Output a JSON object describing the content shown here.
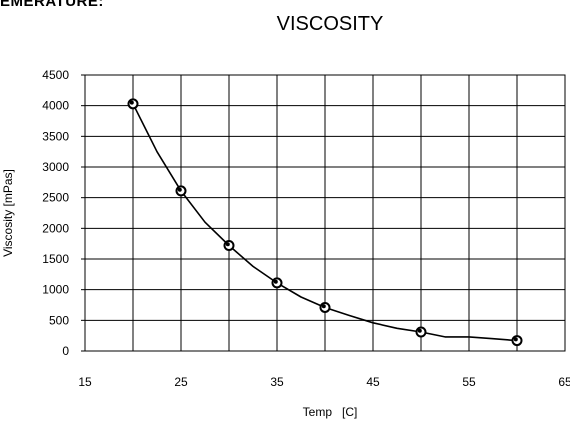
{
  "page": {
    "cut_header": "EMERATURE:"
  },
  "chart_data": {
    "type": "line",
    "title": "VISCOSITY",
    "xlabel": "Temp   [C]",
    "ylabel": "Viscosity [mPas]",
    "xlim": [
      15,
      65
    ],
    "ylim": [
      0,
      4500
    ],
    "x_ticks": [
      15,
      25,
      35,
      45,
      55,
      65
    ],
    "x_tick_labels": [
      "15",
      "25",
      "35",
      "45",
      "55",
      "65"
    ],
    "x_gridlines": [
      15,
      20,
      25,
      30,
      35,
      40,
      45,
      50,
      55,
      60,
      65
    ],
    "y_ticks": [
      0,
      500,
      1000,
      1500,
      2000,
      2500,
      3000,
      3500,
      4000,
      4500
    ],
    "y_tick_labels": [
      "0",
      "500",
      "1000",
      "1500",
      "2000",
      "2500",
      "3000",
      "3500",
      "4000",
      "4500"
    ],
    "grid": true,
    "series": [
      {
        "points": [
          {
            "x": 20,
            "y": 4030
          },
          {
            "x": 25,
            "y": 2610
          },
          {
            "x": 30,
            "y": 1720
          },
          {
            "x": 35,
            "y": 1110
          },
          {
            "x": 40,
            "y": 710
          },
          {
            "x": 50,
            "y": 310
          },
          {
            "x": 60,
            "y": 170
          }
        ],
        "curve": [
          {
            "x": 20,
            "y": 4030
          },
          {
            "x": 22.5,
            "y": 3250
          },
          {
            "x": 25,
            "y": 2610
          },
          {
            "x": 27.5,
            "y": 2100
          },
          {
            "x": 30,
            "y": 1720
          },
          {
            "x": 32.5,
            "y": 1380
          },
          {
            "x": 35,
            "y": 1110
          },
          {
            "x": 37.5,
            "y": 880
          },
          {
            "x": 40,
            "y": 710
          },
          {
            "x": 42.5,
            "y": 580
          },
          {
            "x": 45,
            "y": 460
          },
          {
            "x": 47.5,
            "y": 370
          },
          {
            "x": 50,
            "y": 310
          },
          {
            "x": 52.5,
            "y": 230
          },
          {
            "x": 55,
            "y": 230
          },
          {
            "x": 57.5,
            "y": 200
          },
          {
            "x": 60,
            "y": 170
          }
        ],
        "color": "#000000"
      }
    ]
  }
}
